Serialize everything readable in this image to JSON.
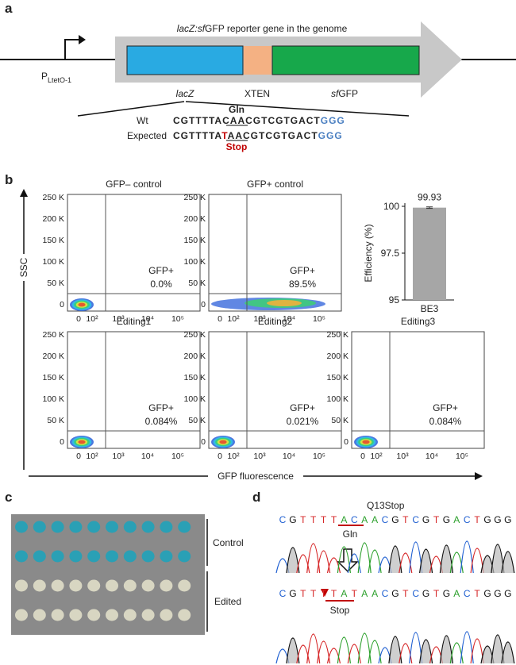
{
  "panel_labels": [
    "a",
    "b",
    "c",
    "d"
  ],
  "panel_a": {
    "construct_title": {
      "italic": "lacZ:sf",
      "plain": "GFP reporter gene in the genome"
    },
    "promoter": {
      "main": "P",
      "sub": "LtetO-1"
    },
    "segments": [
      {
        "italic": "lacZ",
        "plain": ""
      },
      {
        "italic": "",
        "plain": "XTEN"
      },
      {
        "italic": "sf",
        "plain": "GFP"
      }
    ],
    "codon_label": "Gln",
    "wt": {
      "label": "Wt",
      "prefix": "CGTTTTA",
      "codon": "CAA",
      "suffix": "CGTCGTGACT",
      "pam": "GGG"
    },
    "expected": {
      "label": "Expected",
      "prefix": "CGTTTTA",
      "edited_base": "T",
      "codon_rest": "AA",
      "suffix": "CGTCGTGACT",
      "pam": "GGG"
    },
    "stop_label": "Stop"
  },
  "panel_b": {
    "y_axis_label": "SSC",
    "x_axis_label": "GFP fluorescence",
    "y_tick_labels": [
      "0",
      "50 K",
      "100 K",
      "150 K",
      "200 K",
      "250 K"
    ],
    "x_tick_labels": [
      "0",
      "10²",
      "10³",
      "10⁴",
      "10⁵"
    ],
    "gate_label": "GFP+",
    "plots": [
      {
        "title": "GFP– control",
        "percent": "0.0%"
      },
      {
        "title": "GFP+ control",
        "percent": "89.5%"
      },
      {
        "title": "Editing1",
        "percent": "0.084%"
      },
      {
        "title": "Editing2",
        "percent": "0.021%"
      },
      {
        "title": "Editing3",
        "percent": "0.084%"
      }
    ],
    "chart_data": {
      "type": "bar",
      "ylabel": "Efficiency (%)",
      "categories": [
        "BE3"
      ],
      "values": [
        99.93
      ],
      "errors": [
        0.04
      ],
      "value_labels": [
        "99.93"
      ],
      "color": "#a6a6a6",
      "ylim": [
        95,
        100
      ],
      "yticks": [
        95,
        97.5,
        100
      ]
    }
  },
  "panel_c": {
    "groups": [
      "Control",
      "Edited"
    ]
  },
  "panel_d": {
    "mutation": "Q13Stop",
    "wt_bases": [
      "C",
      "G",
      "T",
      "T",
      "T",
      "T",
      "A",
      "C",
      "A",
      "A",
      "C",
      "G",
      "T",
      "C",
      "G",
      "T",
      "G",
      "A",
      "C",
      "T",
      "G",
      "G",
      "G"
    ],
    "edited_bases": [
      "C",
      "G",
      "T",
      "T",
      "T",
      "T",
      "A",
      "T",
      "A",
      "A",
      "C",
      "G",
      "T",
      "C",
      "G",
      "T",
      "G",
      "A",
      "C",
      "T",
      "G",
      "G",
      "G"
    ],
    "wt_codon_label": "Gln",
    "stop_label": "Stop"
  }
}
